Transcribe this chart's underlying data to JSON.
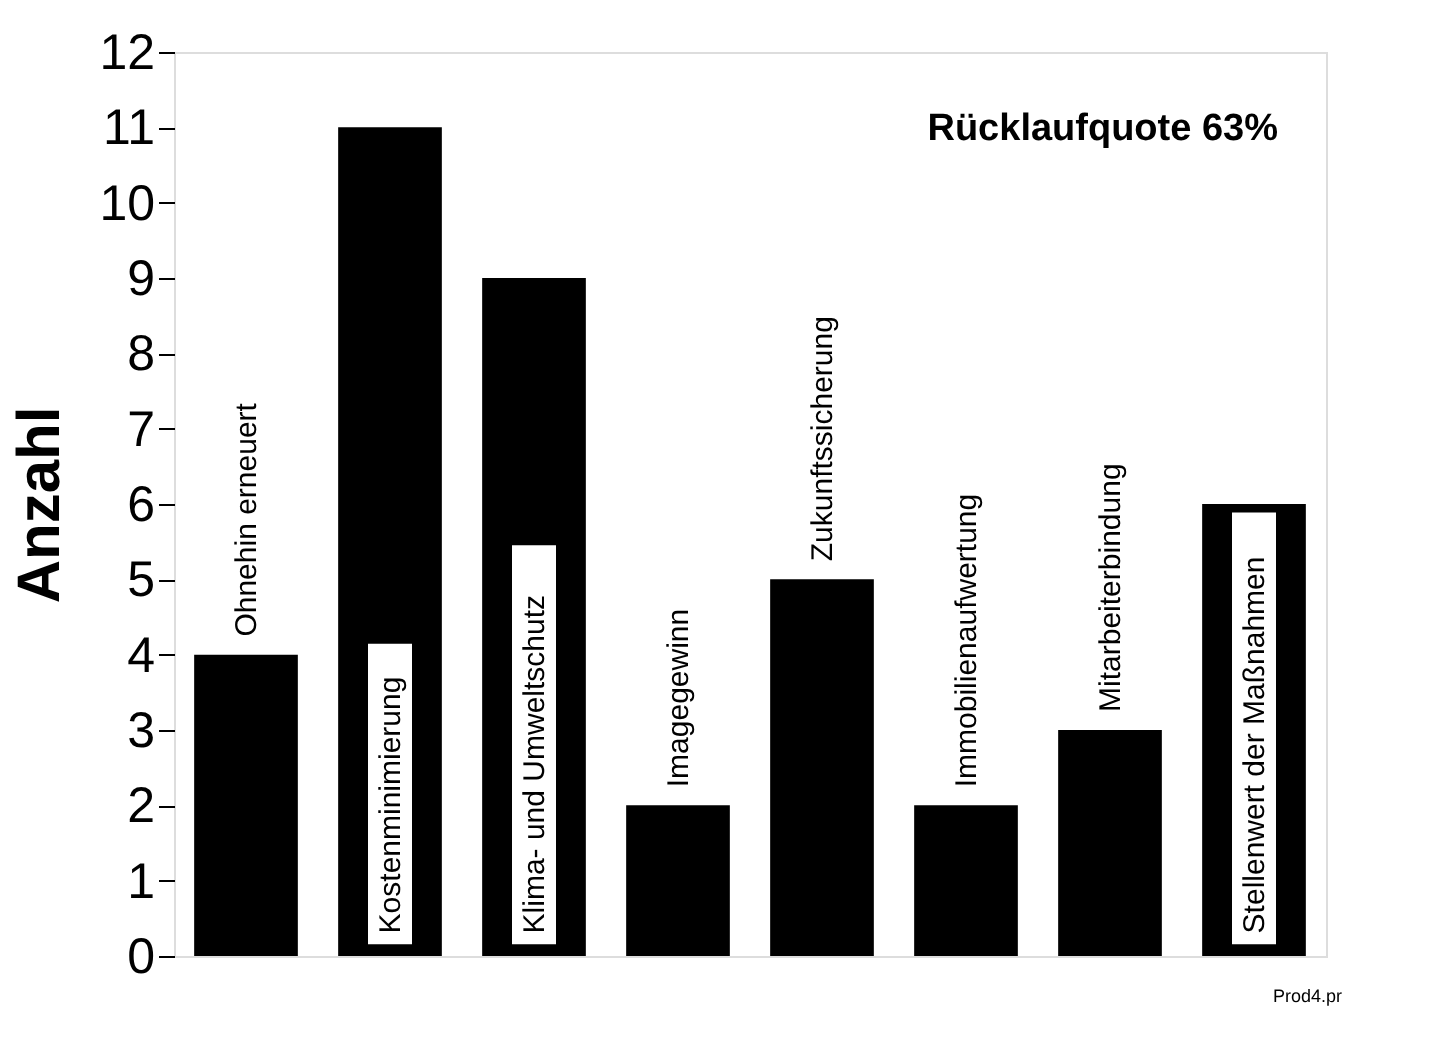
{
  "chart_data": {
    "type": "bar",
    "categories": [
      "Ohnehin erneuert",
      "Kostenminimierung",
      "Klima- und Umweltschutz",
      "Imagegewinn",
      "Zukunftssicherung",
      "Immobilienaufwertung",
      "Mitarbeiterbindung",
      "Stellenwert der Maßnahmen"
    ],
    "values": [
      4,
      11,
      9,
      2,
      5,
      2,
      3,
      6
    ],
    "color": "#000000",
    "ylabel": "Anzahl",
    "ylim": [
      0,
      12
    ],
    "yticks": [
      0,
      1,
      2,
      3,
      4,
      5,
      6,
      7,
      8,
      9,
      10,
      11,
      12
    ],
    "grid": false,
    "tick_labels": "y",
    "annotations": [
      {
        "text": "Rücklaufquote 63%"
      },
      {
        "text": "Prod4.pr"
      }
    ]
  }
}
